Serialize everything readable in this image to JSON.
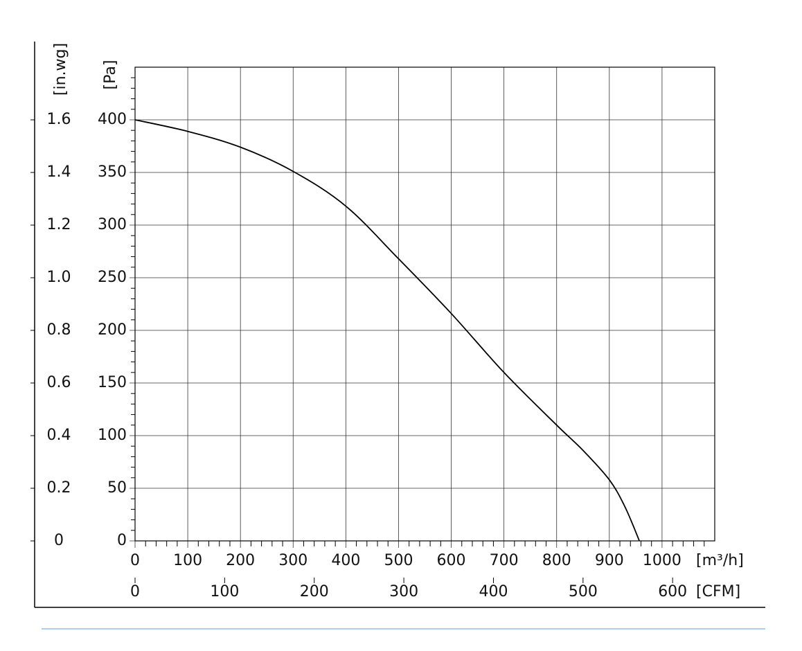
{
  "chart_data": {
    "type": "line",
    "ylabel": "[Pa]",
    "y2label": "[in.wg]",
    "xlabel": "[m³/h]",
    "x2label": "[CFM]",
    "xlim": [
      0,
      1100
    ],
    "xticks": [
      0,
      100,
      200,
      300,
      400,
      500,
      600,
      700,
      800,
      900,
      1000
    ],
    "xminorticks": [
      20,
      40,
      60,
      80,
      120,
      140,
      160,
      180,
      220,
      240,
      260,
      280,
      320,
      340,
      360,
      380,
      420,
      440,
      460,
      480,
      520,
      540,
      560,
      580,
      620,
      640,
      660,
      680,
      720,
      740,
      760,
      780,
      820,
      840,
      860,
      880,
      920,
      940,
      960,
      980,
      1020,
      1040,
      1060,
      1080
    ],
    "x2lim": [
      0,
      647
    ],
    "x2ticks": [
      0,
      100,
      200,
      300,
      400,
      500,
      600
    ],
    "ylim": [
      0,
      450
    ],
    "yticks": [
      0,
      50,
      100,
      150,
      200,
      250,
      300,
      350,
      400
    ],
    "yminorticks": [
      10,
      20,
      30,
      40,
      60,
      70,
      80,
      90,
      110,
      120,
      130,
      140,
      160,
      170,
      180,
      190,
      210,
      220,
      230,
      240,
      260,
      270,
      280,
      290,
      310,
      320,
      330,
      340,
      360,
      370,
      380,
      390,
      410,
      420,
      430,
      440
    ],
    "y2lim": [
      0,
      1.8
    ],
    "y2ticks": [
      0,
      0.2,
      0.4,
      0.6,
      0.8,
      {
        "value": 1,
        "label": "1.0"
      },
      1.2,
      1.4,
      1.6
    ],
    "grid": true,
    "series": [
      {
        "color": "#000000",
        "x": [
          0,
          100,
          200,
          300,
          400,
          500,
          600,
          700,
          800,
          850,
          900,
          930,
          957
        ],
        "values": [
          400,
          389,
          374,
          351,
          318,
          268,
          216,
          160,
          110,
          86,
          58,
          32,
          0
        ]
      }
    ]
  }
}
